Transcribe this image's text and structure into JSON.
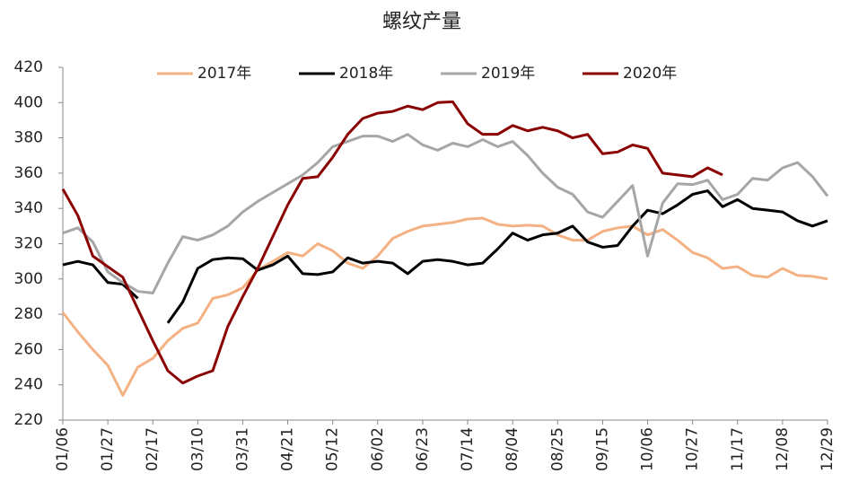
{
  "chart_data": {
    "type": "line",
    "title": "螺纹产量",
    "categories": [
      "01/06",
      null,
      null,
      "01/27",
      null,
      null,
      "02/17",
      null,
      null,
      "03/10",
      null,
      null,
      "03/31",
      null,
      null,
      "04/21",
      null,
      null,
      "05/12",
      null,
      null,
      "06/02",
      null,
      null,
      "06/23",
      null,
      null,
      "07/14",
      null,
      null,
      "08/04",
      null,
      null,
      "08/25",
      null,
      null,
      "09/15",
      null,
      null,
      "10/06",
      null,
      null,
      "10/27",
      null,
      null,
      "11/17",
      null,
      null,
      "12/08",
      null,
      null,
      "12/29"
    ],
    "series": [
      {
        "name": "2017年",
        "color": "#f4b183",
        "values": [
          281,
          270,
          260,
          251,
          234,
          250,
          255,
          265,
          272,
          275,
          289,
          291,
          295,
          305,
          310,
          315,
          313,
          320,
          316,
          309,
          306,
          313,
          323,
          327,
          330,
          331,
          332,
          334,
          334.5,
          331,
          330,
          330.5,
          330,
          325,
          322,
          322,
          327,
          329,
          330,
          325,
          328,
          322,
          315,
          312,
          306,
          307,
          302,
          301,
          306,
          302,
          301.5,
          300
        ]
      },
      {
        "name": "2018年",
        "color": "#000000",
        "values": [
          308,
          310,
          308,
          298,
          297,
          289,
          null,
          275,
          287,
          306,
          311,
          312,
          311.5,
          305,
          308,
          313,
          303,
          302.5,
          304,
          312,
          309,
          310,
          309,
          303,
          310,
          311,
          310,
          308,
          309,
          317,
          326,
          322,
          325,
          326,
          330,
          321,
          318,
          319,
          330,
          339,
          337,
          342,
          348,
          350,
          341,
          345,
          340,
          339,
          338,
          333,
          330,
          333
        ]
      },
      {
        "name": "2019年",
        "color": "#a6a6a6",
        "values": [
          326,
          329,
          321,
          304,
          298,
          293,
          292,
          309,
          324,
          322,
          325,
          330,
          338,
          344,
          349,
          354,
          359,
          366,
          375,
          378,
          381,
          381,
          378,
          382,
          376,
          373,
          377,
          375,
          379,
          375,
          378,
          370,
          360,
          352,
          348,
          338,
          335,
          344,
          353,
          313,
          343,
          354,
          353.5,
          356,
          345,
          348,
          357,
          356,
          363,
          366,
          358,
          347
        ]
      },
      {
        "name": "2020年",
        "color": "#8b0000",
        "values": [
          351,
          336,
          313,
          307,
          301,
          283,
          265,
          248,
          241,
          245,
          248,
          273,
          290,
          306,
          324,
          342,
          357,
          358,
          369,
          382,
          391,
          394,
          395,
          398,
          396,
          400,
          400.5,
          388,
          382,
          382,
          387,
          384,
          386,
          384,
          380,
          382,
          371,
          372,
          376,
          374,
          360,
          359,
          358,
          363,
          359,
          null,
          null,
          null,
          null,
          null,
          null,
          null
        ]
      }
    ],
    "ylim": [
      220,
      420
    ],
    "yticks": [
      220,
      240,
      260,
      280,
      300,
      320,
      340,
      360,
      380,
      400,
      420
    ],
    "legend": "top"
  }
}
